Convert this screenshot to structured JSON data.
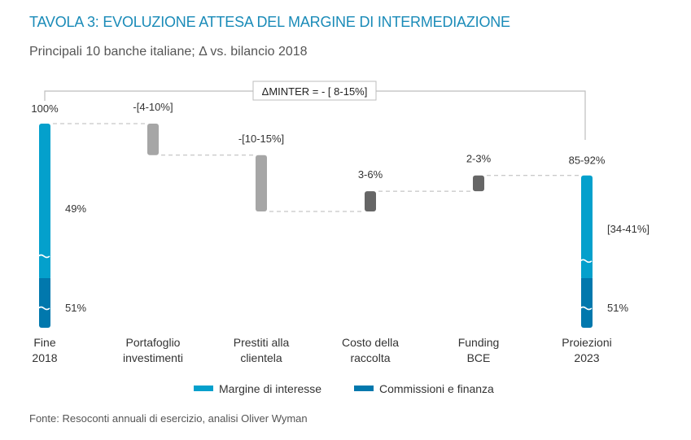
{
  "chart_data": {
    "type": "bar",
    "subtype": "waterfall",
    "title": "TAVOLA 3: EVOLUZIONE ATTESA DEL MARGINE DI INTERMEDIAZIONE",
    "subtitle": "Principali 10 banche italiane; Δ vs. bilancio 2018",
    "annotation": "ΔMINTER = - [ 8-15%]",
    "source": "Fonte: Resoconti annuali di esercizio, analisi Oliver Wyman",
    "categories": [
      "Fine\n2018",
      "Portafoglio\ninvestimenti",
      "Prestiti alla\nclientela",
      "Costo della\nraccolta",
      "Funding\nBCE",
      "Proiezioni\n2023"
    ],
    "category_lines": [
      [
        "Fine",
        "2018"
      ],
      [
        "Portafoglio",
        "investimenti"
      ],
      [
        "Prestiti alla",
        "clientela"
      ],
      [
        "Costo della",
        "raccolta"
      ],
      [
        "Funding",
        "BCE"
      ],
      [
        "Proiezioni",
        "2023"
      ]
    ],
    "steps": [
      {
        "kind": "total",
        "start": 0,
        "end": 100,
        "label": "100%",
        "segments": [
          {
            "series": "Commissioni e finanza",
            "value": 51,
            "label": "51%"
          },
          {
            "series": "Margine di interesse",
            "value": 49,
            "label": "49%"
          }
        ]
      },
      {
        "kind": "decrease",
        "start": 100,
        "end": 93,
        "label": "-[4-10%]"
      },
      {
        "kind": "decrease",
        "start": 93,
        "end": 80.5,
        "label": "-[10-15%]"
      },
      {
        "kind": "increase",
        "start": 80.5,
        "end": 85,
        "label": "3-6%"
      },
      {
        "kind": "increase",
        "start": 85,
        "end": 88.5,
        "label": "2-3%"
      },
      {
        "kind": "total",
        "start": 0,
        "end": 88.5,
        "label": "85-92%",
        "segments": [
          {
            "series": "Commissioni e finanza",
            "value": 51,
            "label": "51%"
          },
          {
            "series": "Margine di interesse",
            "value": 37.5,
            "label": "[34-41%]"
          }
        ]
      }
    ],
    "legend": [
      {
        "name": "Margine di interesse",
        "color": "#04a0cc"
      },
      {
        "name": "Commissioni e finanza",
        "color": "#0178ad"
      }
    ],
    "legend_position": "bottom",
    "colors": {
      "decrease": "#a6a6a6",
      "increase": "#666666",
      "connector": "#b8b8b8",
      "bracket": "#bdbdbd"
    },
    "axis_break": true,
    "grid": false
  }
}
